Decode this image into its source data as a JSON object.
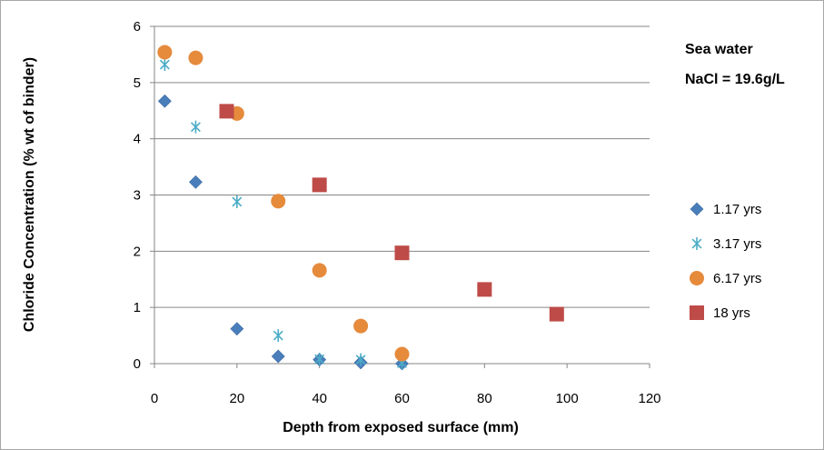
{
  "chart_data": {
    "type": "scatter",
    "title": "",
    "xlabel": "Depth from exposed surface (mm)",
    "ylabel": "Chloride Concentration (% wt of binder)",
    "xlim": [
      0,
      120
    ],
    "ylim": [
      0,
      6
    ],
    "x_ticks": [
      "0",
      "20",
      "40",
      "60",
      "80",
      "100",
      "120"
    ],
    "y_ticks": [
      "0",
      "1",
      "2",
      "3",
      "4",
      "5",
      "6"
    ],
    "grid": "horizontal",
    "legend_position": "right",
    "annotation": [
      "Sea water",
      "NaCl = 19.6g/L"
    ],
    "series": [
      {
        "name": "1.17 yrs",
        "marker": "diamond",
        "color": "#4a7ebb",
        "points": [
          [
            2.5,
            4.67
          ],
          [
            10,
            3.23
          ],
          [
            20,
            0.62
          ],
          [
            30,
            0.13
          ],
          [
            40,
            0.07
          ],
          [
            50,
            0.02
          ],
          [
            60,
            0.0
          ]
        ]
      },
      {
        "name": "3.17 yrs",
        "marker": "star",
        "color": "#4bacc6",
        "points": [
          [
            2.5,
            5.32
          ],
          [
            10,
            4.21
          ],
          [
            20,
            2.88
          ],
          [
            30,
            0.5
          ],
          [
            40,
            0.08
          ],
          [
            50,
            0.07
          ],
          [
            60,
            0.01
          ]
        ]
      },
      {
        "name": "6.17 yrs",
        "marker": "circle",
        "color": "#e68a3c",
        "points": [
          [
            2.5,
            5.54
          ],
          [
            10,
            5.44
          ],
          [
            20,
            4.45
          ],
          [
            30,
            2.89
          ],
          [
            40,
            1.66
          ],
          [
            50,
            0.67
          ],
          [
            60,
            0.17
          ]
        ]
      },
      {
        "name": "18 yrs",
        "marker": "square",
        "color": "#be4b48",
        "points": [
          [
            17.5,
            4.49
          ],
          [
            40,
            3.18
          ],
          [
            60,
            1.97
          ],
          [
            80,
            1.32
          ],
          [
            97.5,
            0.88
          ]
        ]
      }
    ]
  }
}
